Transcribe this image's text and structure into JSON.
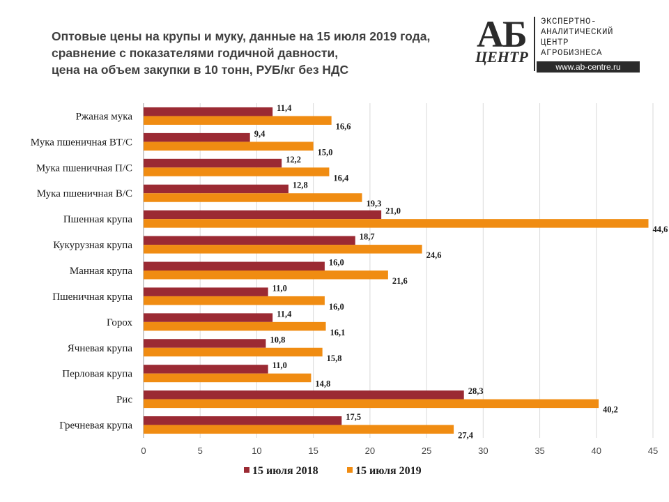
{
  "title": [
    "Оптовые цены на крупы и муку, данные на 15 июля 2019 года,",
    "сравнение с показателями годичной давности,",
    "цена на объем закупки в 10 тонн, РУБ/кг без НДС"
  ],
  "logo": {
    "mark": "АБ",
    "sub": "ЦЕНТР",
    "lines": [
      "ЭКСПЕРТНО-",
      "АНАЛИТИЧЕСКИЙ",
      "ЦЕНТР",
      "АГРОБИЗНЕСА"
    ],
    "url": "www.ab-centre.ru"
  },
  "chart_data": {
    "type": "bar",
    "orientation": "horizontal",
    "categories": [
      "Ржаная мука",
      "Мука пшеничная ВТ/С",
      "Мука пшеничная П/С",
      "Мука пшеничная В/С",
      "Пшенная крупа",
      "Кукурузная крупа",
      "Манная крупа",
      "Пшеничная крупа",
      "Горох",
      "Ячневая крупа",
      "Перловая крупа",
      "Рис",
      "Гречневая крупа"
    ],
    "series": [
      {
        "name": "15 июля 2018",
        "color": "#9b2a33",
        "values": [
          11.4,
          9.4,
          12.2,
          12.8,
          21.0,
          18.7,
          16.0,
          11.0,
          11.4,
          10.8,
          11.0,
          28.3,
          17.5
        ],
        "labels": [
          "11,4",
          "9,4",
          "12,2",
          "12,8",
          "21,0",
          "18,7",
          "16,0",
          "11,0",
          "11,4",
          "10,8",
          "11,0",
          "28,3",
          "17,5"
        ]
      },
      {
        "name": "15 июля 2019",
        "color": "#f08c12",
        "values": [
          16.6,
          15.0,
          16.4,
          19.3,
          44.6,
          24.6,
          21.6,
          16.0,
          16.1,
          15.8,
          14.8,
          40.2,
          27.4
        ],
        "labels": [
          "16,6",
          "15,0",
          "16,4",
          "19,3",
          "44,6",
          "24,6",
          "21,6",
          "16,0",
          "16,1",
          "15,8",
          "14,8",
          "40,2",
          "27,4"
        ]
      }
    ],
    "x_ticks": [
      "0",
      "5",
      "10",
      "15",
      "20",
      "25",
      "30",
      "35",
      "40",
      "45"
    ],
    "xlim": [
      0,
      45
    ],
    "grid": "vertical",
    "legend_position": "bottom"
  }
}
